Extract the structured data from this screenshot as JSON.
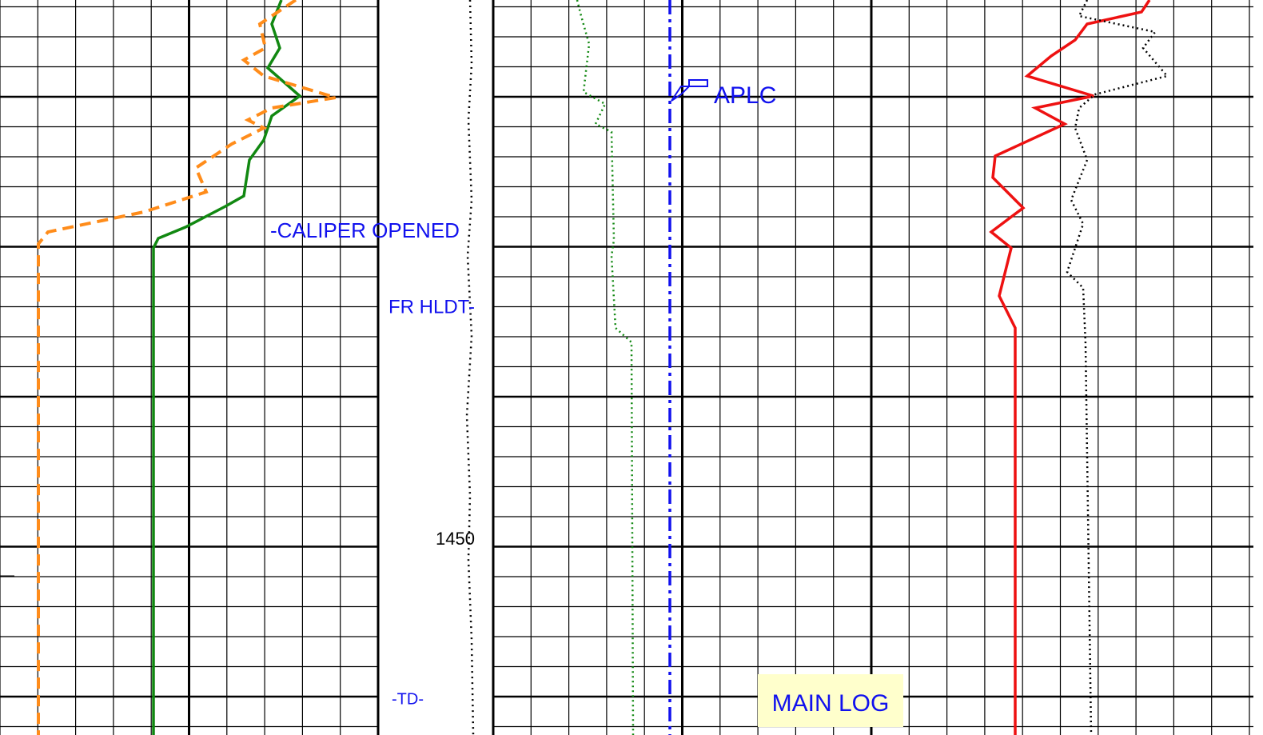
{
  "annotations": {
    "caliper": "-CALIPER OPENED",
    "fr_hldt": "FR HLDT-",
    "aplc": "APLC",
    "depth": "1450",
    "td": "-TD-",
    "main_log": "MAIN LOG"
  }
}
